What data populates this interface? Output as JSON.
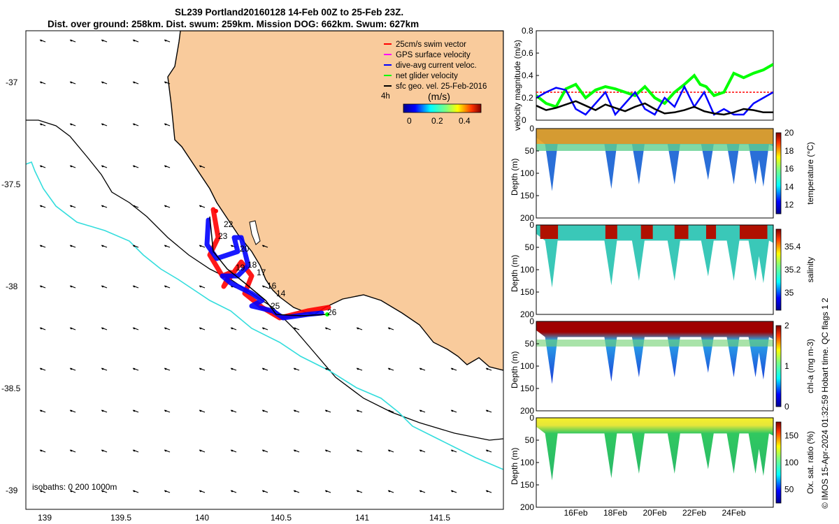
{
  "title_line1": "SL239 Portland20160128 14-Feb 00Z to 25-Feb 23Z.",
  "title_line2": "Dist. over ground: 258km. Dist. swum: 259km. Mission DOG: 662km. Swum: 627km",
  "credit": "© IMOS 15-Apr-2024 01:32:59 Hobart time. QC flags 1  2",
  "colors": {
    "land": "#f9cb9c",
    "swim_vector": "#ff0000",
    "gps_velocity": "#ff00ff",
    "dive_avg": "#0000ff",
    "net_glider": "#00ff00",
    "geo_vel": "#000000",
    "isobath_200": "#000000",
    "isobath_1000": "#33dddd"
  },
  "map": {
    "legend": [
      {
        "label": "25cm/s swim vector",
        "color": "#ff0000"
      },
      {
        "label": "GPS surface velocity",
        "color": "#ff00ff"
      },
      {
        "label": "dive-avg current veloc.",
        "color": "#0000ff"
      },
      {
        "label": "net glider velocity",
        "color": "#00ff00"
      },
      {
        "label": "sfc geo. vel. 25-Feb-2016",
        "color": "#000000"
      }
    ],
    "colorbar": {
      "label": "(m/s)",
      "ticks": [
        "0",
        "0.2",
        "0.4"
      ],
      "range": [
        0,
        0.5
      ]
    },
    "interval_label": "4h",
    "isobaths_label": "isobaths: 0   200  1000m",
    "x_ticks": [
      "139",
      "139.5",
      "140",
      "140.5",
      "141",
      "141.5"
    ],
    "y_ticks": [
      "-37",
      "-37.5",
      "-38",
      "-38.5",
      "-39"
    ],
    "day_labels": [
      "22",
      "23",
      "20",
      "19",
      "18",
      "17",
      "16",
      "14",
      "25",
      "26"
    ]
  },
  "chart_data": [
    {
      "type": "line",
      "ylabel": "velocity magnitude (m/s)",
      "ylim": [
        0,
        0.8
      ],
      "yticks": [
        "0",
        "0.2",
        "0.4",
        "0.6",
        "0.8"
      ],
      "xlim": [
        14,
        26
      ],
      "series": [
        {
          "name": "25cm/s swim vector",
          "color": "#ff0000",
          "x": [
            14.0,
            26.0
          ],
          "y": [
            0.25,
            0.25
          ]
        },
        {
          "name": "net glider velocity",
          "color": "#00ff00",
          "x": [
            14.0,
            14.5,
            15.0,
            15.5,
            16.0,
            16.5,
            17.0,
            17.5,
            18.0,
            18.5,
            19.0,
            19.5,
            20.0,
            20.5,
            21.0,
            21.5,
            22.0,
            22.3,
            22.6,
            23.0,
            23.5,
            24.0,
            24.5,
            25.0,
            25.5,
            26.0
          ],
          "y": [
            0.22,
            0.15,
            0.12,
            0.28,
            0.32,
            0.2,
            0.27,
            0.3,
            0.28,
            0.25,
            0.22,
            0.3,
            0.2,
            0.15,
            0.25,
            0.32,
            0.4,
            0.32,
            0.3,
            0.22,
            0.25,
            0.42,
            0.38,
            0.42,
            0.45,
            0.5
          ]
        },
        {
          "name": "dive-avg current veloc.",
          "color": "#0000ff",
          "x": [
            14.0,
            14.5,
            15.0,
            15.5,
            16.0,
            16.5,
            17.0,
            17.5,
            18.0,
            18.5,
            19.0,
            19.5,
            20.0,
            20.5,
            21.0,
            21.5,
            22.0,
            22.5,
            23.0,
            23.5,
            24.0,
            24.5,
            25.0,
            25.5,
            26.0
          ],
          "y": [
            0.2,
            0.25,
            0.29,
            0.27,
            0.1,
            0.05,
            0.15,
            0.25,
            0.05,
            0.15,
            0.25,
            0.1,
            0.05,
            0.2,
            0.12,
            0.3,
            0.12,
            0.25,
            0.05,
            0.1,
            0.05,
            0.05,
            0.15,
            0.2,
            0.25
          ]
        },
        {
          "name": "sfc geo. vel.",
          "color": "#000000",
          "x": [
            14.0,
            14.5,
            15.0,
            15.5,
            16.0,
            16.5,
            17.0,
            17.5,
            18.0,
            18.5,
            19.0,
            19.5,
            20.0,
            20.5,
            21.0,
            21.5,
            22.0,
            22.5,
            23.0,
            23.5,
            24.0,
            24.5,
            25.0,
            25.5,
            26.0
          ],
          "y": [
            0.13,
            0.09,
            0.11,
            0.14,
            0.17,
            0.13,
            0.09,
            0.14,
            0.11,
            0.08,
            0.12,
            0.15,
            0.1,
            0.06,
            0.07,
            0.09,
            0.12,
            0.08,
            0.06,
            0.05,
            0.07,
            0.1,
            0.09,
            0.07,
            0.07
          ]
        }
      ]
    },
    {
      "type": "heatmap",
      "ylabel": "Depth (m)",
      "ylim": [
        200,
        0
      ],
      "yticks": [
        "0",
        "50",
        "100",
        "150",
        "200"
      ],
      "colorbar_label": "temperature (°C)",
      "clim": [
        11,
        20
      ],
      "cticks": [
        "12",
        "14",
        "16",
        "18",
        "20"
      ],
      "dive_bottom_days": [
        14.8,
        17.8,
        19.2,
        21.0,
        22.7,
        24.0,
        25.1,
        25.5
      ],
      "dive_bottom_depths_m": [
        140,
        135,
        125,
        125,
        115,
        125,
        125,
        130
      ],
      "surface_value": 19.0,
      "deep_value": 12.0
    },
    {
      "type": "heatmap",
      "ylabel": "Depth (m)",
      "ylim": [
        200,
        0
      ],
      "yticks": [
        "0",
        "50",
        "100",
        "150",
        "200"
      ],
      "colorbar_label": "salinity",
      "clim": [
        34.85,
        35.55
      ],
      "cticks": [
        "35",
        "35.2",
        "35.4"
      ],
      "dive_bottom_days": [
        14.8,
        17.8,
        19.2,
        21.0,
        22.7,
        24.0,
        25.1,
        25.5
      ],
      "dive_bottom_depths_m": [
        140,
        135,
        125,
        125,
        115,
        125,
        125,
        130
      ],
      "surface_value": 35.5,
      "deep_value": 35.15
    },
    {
      "type": "heatmap",
      "ylabel": "Depth (m)",
      "ylim": [
        200,
        0
      ],
      "yticks": [
        "0",
        "50",
        "100",
        "150",
        "200"
      ],
      "colorbar_label": "chl-a (mg m-3)",
      "clim": [
        0,
        2
      ],
      "cticks": [
        "0",
        "1",
        "2"
      ],
      "dive_bottom_days": [
        14.8,
        17.8,
        19.2,
        21.0,
        22.7,
        24.0,
        25.1,
        25.5
      ],
      "dive_bottom_depths_m": [
        140,
        135,
        125,
        125,
        115,
        125,
        125,
        130
      ],
      "surface_value": 2.0,
      "deep_value": 0.5
    },
    {
      "type": "heatmap",
      "ylabel": "Depth (m)",
      "ylim": [
        200,
        0
      ],
      "yticks": [
        "0",
        "50",
        "100",
        "150",
        "200"
      ],
      "xticks": [
        "16Feb",
        "18Feb",
        "20Feb",
        "22Feb",
        "24Feb"
      ],
      "colorbar_label": "Ox. sat. ratio (%)",
      "clim": [
        25,
        175
      ],
      "cticks": [
        "50",
        "100",
        "150"
      ],
      "dive_bottom_days": [
        14.8,
        17.8,
        19.2,
        21.0,
        22.7,
        24.0,
        25.1,
        25.5
      ],
      "dive_bottom_depths_m": [
        140,
        135,
        125,
        125,
        115,
        125,
        125,
        130
      ],
      "surface_value": 145,
      "deep_value": 100
    }
  ]
}
